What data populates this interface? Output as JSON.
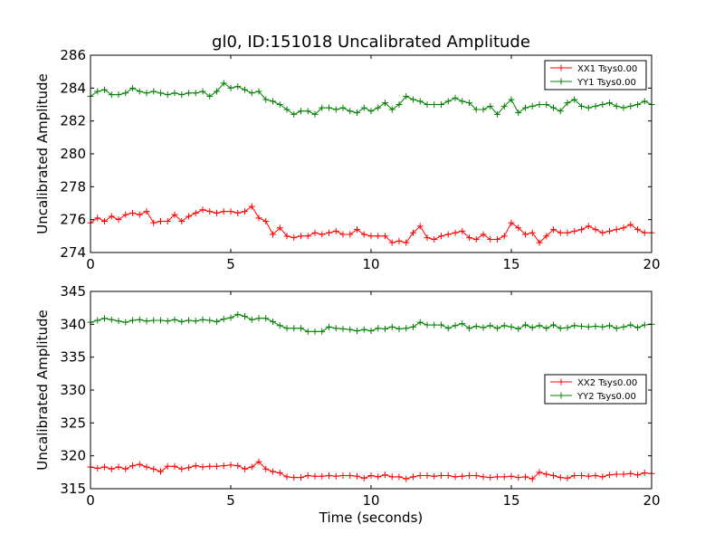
{
  "figure": {
    "title": "gl0, ID:151018 Uncalibrated Amplitude",
    "xlabel": "Time (seconds)"
  },
  "colors": {
    "XX": "#ff0000",
    "YY": "#008000"
  },
  "chart_data": [
    {
      "type": "line",
      "title": "gl0, ID:151018 Uncalibrated Amplitude",
      "xlabel": "",
      "ylabel": "Uncalibrated Amplitude",
      "xlim": [
        0,
        20
      ],
      "ylim": [
        274,
        286
      ],
      "xticks": [
        0,
        5,
        10,
        15,
        20
      ],
      "yticks": [
        274,
        276,
        278,
        280,
        282,
        284,
        286
      ],
      "legend_position": "top-right",
      "grid": false,
      "series": [
        {
          "name": "XX1 Tsys0.00",
          "color": "#ff0000",
          "x": [
            0.0,
            0.25,
            0.5,
            0.75,
            1.0,
            1.25,
            1.5,
            1.75,
            2.0,
            2.25,
            2.5,
            2.75,
            3.0,
            3.25,
            3.5,
            3.75,
            4.0,
            4.25,
            4.5,
            4.75,
            5.0,
            5.25,
            5.5,
            5.75,
            6.0,
            6.25,
            6.5,
            6.75,
            7.0,
            7.25,
            7.5,
            7.75,
            8.0,
            8.25,
            8.5,
            8.75,
            9.0,
            9.25,
            9.5,
            9.75,
            10.0,
            10.25,
            10.5,
            10.75,
            11.0,
            11.25,
            11.5,
            11.75,
            12.0,
            12.25,
            12.5,
            12.75,
            13.0,
            13.25,
            13.5,
            13.75,
            14.0,
            14.25,
            14.5,
            14.75,
            15.0,
            15.25,
            15.5,
            15.75,
            16.0,
            16.25,
            16.5,
            16.75,
            17.0,
            17.25,
            17.5,
            17.75,
            18.0,
            18.25,
            18.5,
            18.75,
            19.0,
            19.25,
            19.5,
            19.75,
            20.0
          ],
          "y": [
            275.8,
            276.1,
            275.9,
            276.2,
            276.0,
            276.3,
            276.4,
            276.3,
            276.5,
            275.8,
            275.9,
            275.9,
            276.3,
            275.9,
            276.2,
            276.4,
            276.6,
            276.5,
            276.4,
            276.5,
            276.5,
            276.4,
            276.5,
            276.8,
            276.1,
            275.9,
            275.1,
            275.5,
            275.0,
            274.9,
            275.0,
            275.0,
            275.2,
            275.1,
            275.2,
            275.3,
            275.1,
            275.1,
            275.4,
            275.1,
            275.0,
            275.0,
            275.0,
            274.6,
            274.7,
            274.6,
            275.2,
            275.6,
            274.9,
            274.8,
            275.0,
            275.1,
            275.2,
            275.3,
            274.9,
            274.8,
            275.1,
            274.8,
            274.8,
            275.0,
            275.8,
            275.5,
            275.1,
            275.2,
            274.6,
            275.0,
            275.4,
            275.2,
            275.2,
            275.3,
            275.4,
            275.6,
            275.4,
            275.2,
            275.3,
            275.4,
            275.5,
            275.7,
            275.4,
            275.2,
            275.2
          ]
        },
        {
          "name": "YY1 Tsys0.00",
          "color": "#008000",
          "x": [
            0.0,
            0.25,
            0.5,
            0.75,
            1.0,
            1.25,
            1.5,
            1.75,
            2.0,
            2.25,
            2.5,
            2.75,
            3.0,
            3.25,
            3.5,
            3.75,
            4.0,
            4.25,
            4.5,
            4.75,
            5.0,
            5.25,
            5.5,
            5.75,
            6.0,
            6.25,
            6.5,
            6.75,
            7.0,
            7.25,
            7.5,
            7.75,
            8.0,
            8.25,
            8.5,
            8.75,
            9.0,
            9.25,
            9.5,
            9.75,
            10.0,
            10.25,
            10.5,
            10.75,
            11.0,
            11.25,
            11.5,
            11.75,
            12.0,
            12.25,
            12.5,
            12.75,
            13.0,
            13.25,
            13.5,
            13.75,
            14.0,
            14.25,
            14.5,
            14.75,
            15.0,
            15.25,
            15.5,
            15.75,
            16.0,
            16.25,
            16.5,
            16.75,
            17.0,
            17.25,
            17.5,
            17.75,
            18.0,
            18.25,
            18.5,
            18.75,
            19.0,
            19.25,
            19.5,
            19.75,
            20.0
          ],
          "y": [
            283.5,
            283.8,
            283.9,
            283.6,
            283.6,
            283.7,
            284.0,
            283.8,
            283.7,
            283.8,
            283.7,
            283.6,
            283.7,
            283.6,
            283.7,
            283.7,
            283.8,
            283.5,
            283.8,
            284.3,
            284.0,
            284.1,
            283.9,
            283.7,
            283.8,
            283.3,
            283.2,
            283.0,
            282.7,
            282.4,
            282.6,
            282.6,
            282.4,
            282.8,
            282.8,
            282.7,
            282.8,
            282.6,
            282.5,
            282.8,
            282.6,
            282.8,
            283.1,
            282.7,
            283.0,
            283.5,
            283.3,
            283.2,
            283.0,
            283.0,
            283.0,
            283.2,
            283.4,
            283.2,
            283.1,
            282.7,
            282.7,
            282.9,
            282.4,
            282.9,
            283.3,
            282.5,
            282.8,
            282.9,
            283.0,
            283.0,
            282.8,
            282.6,
            283.1,
            283.3,
            282.9,
            282.8,
            282.9,
            283.0,
            283.1,
            282.9,
            282.8,
            282.9,
            283.0,
            283.2,
            283.0
          ]
        }
      ]
    },
    {
      "type": "line",
      "title": "",
      "xlabel": "Time (seconds)",
      "ylabel": "Uncalibrated Amplitude",
      "xlim": [
        0,
        20
      ],
      "ylim": [
        315,
        345
      ],
      "xticks": [
        0,
        5,
        10,
        15,
        20
      ],
      "yticks": [
        315,
        320,
        325,
        330,
        335,
        340,
        345
      ],
      "legend_position": "center-right",
      "grid": false,
      "series": [
        {
          "name": "XX2 Tsys0.00",
          "color": "#ff0000",
          "x": [
            0.0,
            0.25,
            0.5,
            0.75,
            1.0,
            1.25,
            1.5,
            1.75,
            2.0,
            2.25,
            2.5,
            2.75,
            3.0,
            3.25,
            3.5,
            3.75,
            4.0,
            4.25,
            4.5,
            4.75,
            5.0,
            5.25,
            5.5,
            5.75,
            6.0,
            6.25,
            6.5,
            6.75,
            7.0,
            7.25,
            7.5,
            7.75,
            8.0,
            8.25,
            8.5,
            8.75,
            9.0,
            9.25,
            9.5,
            9.75,
            10.0,
            10.25,
            10.5,
            10.75,
            11.0,
            11.25,
            11.5,
            11.75,
            12.0,
            12.25,
            12.5,
            12.75,
            13.0,
            13.25,
            13.5,
            13.75,
            14.0,
            14.25,
            14.5,
            14.75,
            15.0,
            15.25,
            15.5,
            15.75,
            16.0,
            16.25,
            16.5,
            16.75,
            17.0,
            17.25,
            17.5,
            17.75,
            18.0,
            18.25,
            18.5,
            18.75,
            19.0,
            19.25,
            19.5,
            19.75,
            20.0
          ],
          "y": [
            318.3,
            318.1,
            318.3,
            318.0,
            318.3,
            318.0,
            318.5,
            318.7,
            318.3,
            318.0,
            317.6,
            318.4,
            318.4,
            318.0,
            318.2,
            318.5,
            318.3,
            318.4,
            318.4,
            318.5,
            318.6,
            318.5,
            318.0,
            318.3,
            319.1,
            318.0,
            317.6,
            317.4,
            316.8,
            316.7,
            316.7,
            317.0,
            316.9,
            316.9,
            317.0,
            316.9,
            317.0,
            317.0,
            316.9,
            316.6,
            317.0,
            316.8,
            317.1,
            316.8,
            316.8,
            316.5,
            316.8,
            317.0,
            317.0,
            316.9,
            317.0,
            317.0,
            316.8,
            316.9,
            317.0,
            317.0,
            316.8,
            316.7,
            316.8,
            316.8,
            316.9,
            316.7,
            316.8,
            316.5,
            317.5,
            317.2,
            317.0,
            316.7,
            316.6,
            317.0,
            317.0,
            316.9,
            317.0,
            316.8,
            317.1,
            317.2,
            317.2,
            317.3,
            317.1,
            317.4,
            317.3
          ]
        },
        {
          "name": "YY2 Tsys0.00",
          "color": "#008000",
          "x": [
            0.0,
            0.25,
            0.5,
            0.75,
            1.0,
            1.25,
            1.5,
            1.75,
            2.0,
            2.25,
            2.5,
            2.75,
            3.0,
            3.25,
            3.5,
            3.75,
            4.0,
            4.25,
            4.5,
            4.75,
            5.0,
            5.25,
            5.5,
            5.75,
            6.0,
            6.25,
            6.5,
            6.75,
            7.0,
            7.25,
            7.5,
            7.75,
            8.0,
            8.25,
            8.5,
            8.75,
            9.0,
            9.25,
            9.5,
            9.75,
            10.0,
            10.25,
            10.5,
            10.75,
            11.0,
            11.25,
            11.5,
            11.75,
            12.0,
            12.25,
            12.5,
            12.75,
            13.0,
            13.25,
            13.5,
            13.75,
            14.0,
            14.25,
            14.5,
            14.75,
            15.0,
            15.25,
            15.5,
            15.75,
            16.0,
            16.25,
            16.5,
            16.75,
            17.0,
            17.25,
            17.5,
            17.75,
            18.0,
            18.25,
            18.5,
            18.75,
            19.0,
            19.25,
            19.5,
            19.75,
            20.0
          ],
          "y": [
            340.3,
            340.6,
            340.9,
            340.7,
            340.5,
            340.3,
            340.6,
            340.7,
            340.5,
            340.6,
            340.6,
            340.5,
            340.7,
            340.4,
            340.6,
            340.5,
            340.7,
            340.6,
            340.4,
            340.8,
            341.0,
            341.5,
            341.2,
            340.7,
            340.9,
            340.9,
            340.4,
            339.8,
            339.4,
            339.4,
            339.4,
            338.9,
            338.9,
            338.9,
            339.6,
            339.4,
            339.3,
            339.2,
            339.0,
            339.2,
            339.0,
            339.4,
            339.3,
            339.6,
            339.3,
            339.4,
            339.6,
            340.3,
            339.9,
            339.9,
            339.9,
            339.4,
            339.8,
            340.1,
            339.4,
            339.7,
            339.5,
            339.8,
            339.4,
            339.8,
            339.6,
            339.3,
            339.9,
            339.5,
            339.8,
            339.4,
            339.9,
            339.4,
            339.5,
            339.8,
            339.7,
            339.6,
            339.7,
            339.6,
            339.8,
            339.4,
            339.6,
            339.9,
            339.5,
            339.9,
            340.0
          ]
        }
      ]
    }
  ]
}
